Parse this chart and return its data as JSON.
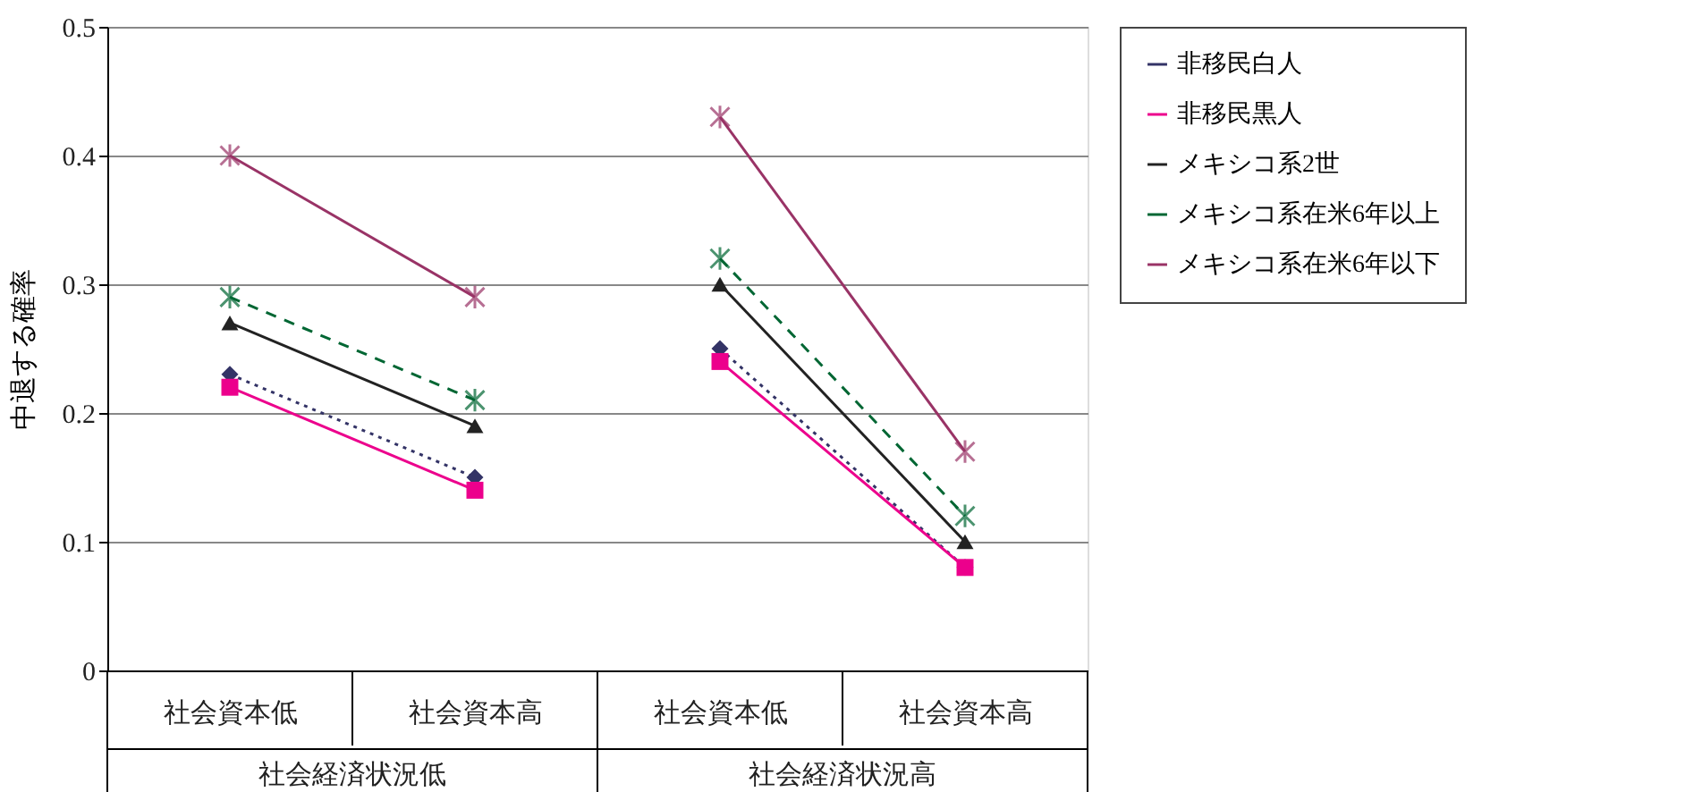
{
  "chart_data": {
    "type": "line",
    "ylabel": "中退する確率",
    "categories": [
      "社会資本低",
      "社会資本高",
      "社会資本低",
      "社会資本高"
    ],
    "annotations": [
      "社会経済状況低",
      "社会経済状況高"
    ],
    "ylim": [
      0,
      0.5
    ],
    "yticks": [
      0,
      0.1,
      0.2,
      0.3,
      0.4,
      0.5
    ],
    "grid": "y",
    "legend": "right",
    "series": [
      {
        "name": "非移民白人",
        "color": "#333366",
        "marker": "diamond",
        "line_style": "dotted",
        "values": [
          0.23,
          0.15,
          0.25,
          0.08
        ]
      },
      {
        "name": "非移民黒人",
        "color": "#ec008c",
        "marker": "square",
        "line_style": "solid",
        "values": [
          0.22,
          0.14,
          0.24,
          0.08
        ]
      },
      {
        "name": "メキシコ系2世",
        "color": "#222222",
        "marker": "triangle",
        "line_style": "solid",
        "values": [
          0.27,
          0.19,
          0.3,
          0.1
        ]
      },
      {
        "name": "メキシコ系在米6年以上",
        "color": "#006633",
        "marker": "cross",
        "line_style": "dashed",
        "values": [
          0.29,
          0.21,
          0.32,
          0.12
        ]
      },
      {
        "name": "メキシコ系在米6年以下",
        "color": "#993366",
        "marker": "cross",
        "line_style": "solid",
        "values": [
          0.4,
          0.29,
          0.43,
          0.17
        ]
      }
    ]
  }
}
